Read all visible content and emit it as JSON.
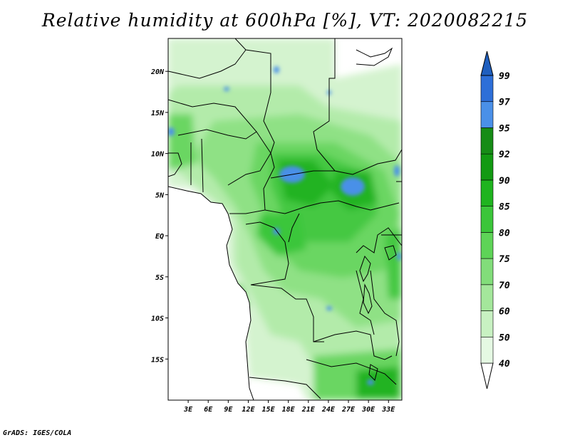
{
  "title": "Relative humidity at 600hPa [%], VT: 2020082215",
  "credit": "GrADS: IGES/COLA",
  "map": {
    "lon_range": [
      0,
      35
    ],
    "lat_range": [
      -20,
      24
    ],
    "lat_ticks": [
      {
        "value": 20,
        "label": "20N"
      },
      {
        "value": 15,
        "label": "15N"
      },
      {
        "value": 10,
        "label": "10N"
      },
      {
        "value": 5,
        "label": "5N"
      },
      {
        "value": 0,
        "label": "EQ"
      },
      {
        "value": -5,
        "label": "5S"
      },
      {
        "value": -10,
        "label": "10S"
      },
      {
        "value": -15,
        "label": "15S"
      }
    ],
    "lon_ticks": [
      {
        "value": 3,
        "label": "3E"
      },
      {
        "value": 6,
        "label": "6E"
      },
      {
        "value": 9,
        "label": "9E"
      },
      {
        "value": 12,
        "label": "12E"
      },
      {
        "value": 15,
        "label": "15E"
      },
      {
        "value": 18,
        "label": "18E"
      },
      {
        "value": 21,
        "label": "21E"
      },
      {
        "value": 24,
        "label": "24E"
      },
      {
        "value": 27,
        "label": "27E"
      },
      {
        "value": 30,
        "label": "30E"
      },
      {
        "value": 33,
        "label": "33E"
      }
    ]
  },
  "colorbar": {
    "levels": [
      "40",
      "50",
      "60",
      "70",
      "75",
      "80",
      "85",
      "90",
      "92",
      "95",
      "97",
      "99"
    ],
    "colors": [
      "#ffffff",
      "#e5f9e3",
      "#c8f1c2",
      "#a4e79b",
      "#82dd7a",
      "#5ed457",
      "#3bc63a",
      "#1fb41f",
      "#129a12",
      "#168c16",
      "#4a90e8",
      "#2d6fd8",
      "#1f5fbf"
    ]
  }
}
